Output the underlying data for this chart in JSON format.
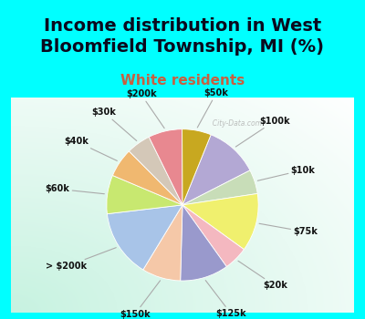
{
  "title": "Income distribution in West\nBloomfield Township, MI (%)",
  "subtitle": "White residents",
  "background_color": "#00FFFF",
  "labels": [
    "$100k",
    "$10k",
    "$75k",
    "$20k",
    "$125k",
    "$150k",
    "> $200k",
    "$60k",
    "$40k",
    "$30k",
    "$200k",
    "$50k"
  ],
  "values": [
    11,
    5,
    12,
    5,
    10,
    8,
    14,
    8,
    6,
    5,
    7,
    6
  ],
  "colors": [
    "#b3a8d4",
    "#c8ddb8",
    "#f0f06e",
    "#f4b8c0",
    "#9999cc",
    "#f5c8a8",
    "#a8c4e8",
    "#c8e870",
    "#f0b870",
    "#d4c8b8",
    "#e88890",
    "#c8a820"
  ],
  "title_fontsize": 14,
  "subtitle_fontsize": 11,
  "title_color": "#0a0a1e",
  "subtitle_color": "#c86040",
  "label_fontsize": 7,
  "watermark": "  City-Data.com",
  "startangle": 68,
  "label_distance": 1.32
}
